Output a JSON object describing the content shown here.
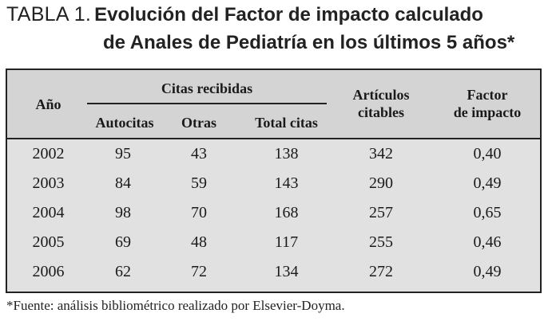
{
  "title": {
    "label": "TABLA 1.",
    "line1": "Evolución del Factor de impacto calculado",
    "line2": "de Anales de Pediatría en los últimos 5 años*"
  },
  "table": {
    "headers": {
      "year": "Año",
      "citas_group": "Citas recibidas",
      "autocitas": "Autocitas",
      "otras": "Otras",
      "total": "Total citas",
      "articulos_1": "Artículos",
      "articulos_2": "citables",
      "factor_1": "Factor",
      "factor_2": "de impacto"
    },
    "rows": [
      [
        "2002",
        "95",
        "43",
        "138",
        "342",
        "0,40"
      ],
      [
        "2003",
        "84",
        "59",
        "143",
        "290",
        "0,49"
      ],
      [
        "2004",
        "98",
        "70",
        "168",
        "257",
        "0,65"
      ],
      [
        "2005",
        "69",
        "48",
        "117",
        "255",
        "0,46"
      ],
      [
        "2006",
        "62",
        "72",
        "134",
        "272",
        "0,49"
      ]
    ]
  },
  "footnote": "*Fuente: análisis bibliométrico realizado por Elsevier-Doyma."
}
